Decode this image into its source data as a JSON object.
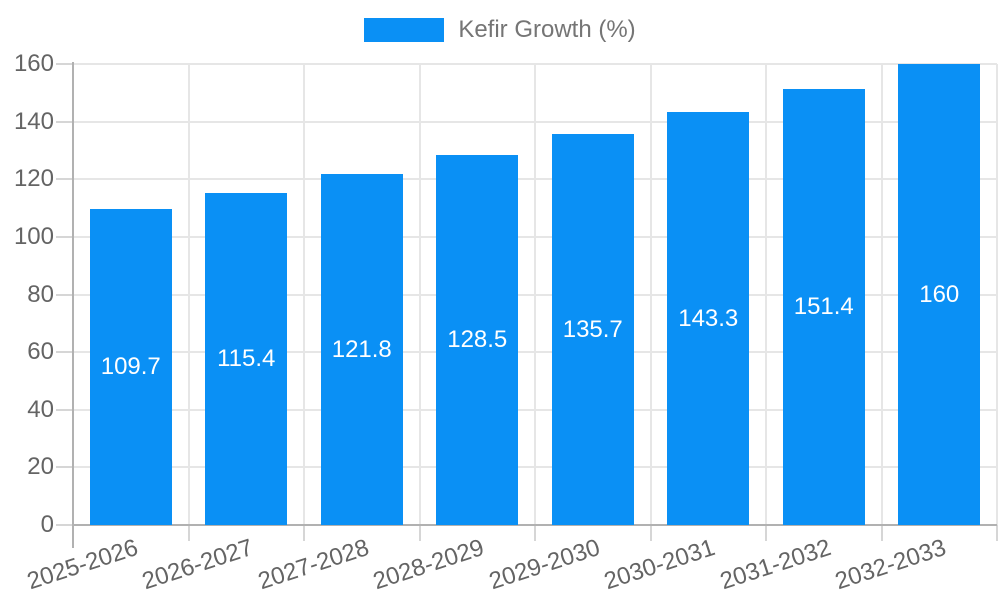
{
  "legend": {
    "label": "Kefir Growth (%)"
  },
  "chart_data": {
    "type": "bar",
    "title": "",
    "xlabel": "",
    "ylabel": "",
    "series_name": "Kefir Growth (%)",
    "categories": [
      "2025-2026",
      "2026-2027",
      "2027-2028",
      "2028-2029",
      "2029-2030",
      "2030-2031",
      "2031-2032",
      "2032-2033"
    ],
    "values": [
      109.7,
      115.4,
      121.8,
      128.5,
      135.7,
      143.3,
      151.4,
      160
    ],
    "value_labels": [
      "109.7",
      "115.4",
      "121.8",
      "128.5",
      "135.7",
      "143.3",
      "151.4",
      "160"
    ],
    "ylim": [
      0,
      160
    ],
    "yticks": [
      0,
      20,
      40,
      60,
      80,
      100,
      120,
      140,
      160
    ],
    "grid": true,
    "legend_position": "top-center",
    "x_label_rotation_deg": -18
  },
  "colors": {
    "bar": "#0a90f5",
    "grid": "#e6e6e6",
    "axis_line": "#b1b1b1",
    "tick": "#d6d6d6",
    "axis_text": "#646464",
    "legend_text": "#757575",
    "value_text": "#ffffff",
    "background": "#ffffff"
  }
}
